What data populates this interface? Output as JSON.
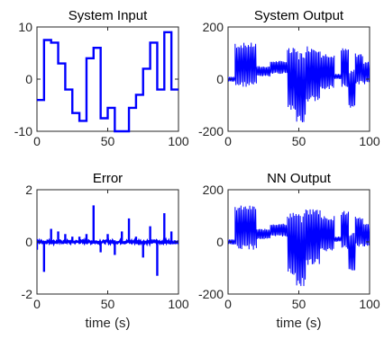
{
  "figure": {
    "line_color": "#0000ff",
    "axis_color": "#262626"
  },
  "chart_data": [
    {
      "type": "line",
      "title": "System Input",
      "xlabel": "",
      "xlim": [
        0,
        100
      ],
      "ylim": [
        -10,
        10
      ],
      "xticks": [
        0,
        50,
        100
      ],
      "yticks": [
        -10,
        0,
        10
      ],
      "series": [
        {
          "style": "step",
          "x": [
            0,
            5,
            10,
            15,
            20,
            25,
            30,
            35,
            40,
            45,
            50,
            55,
            60,
            65,
            70,
            75,
            80,
            85,
            90,
            95,
            100
          ],
          "y": [
            -4,
            7.5,
            7,
            3,
            -2,
            -6.5,
            -8,
            4,
            6,
            -7.5,
            -5.5,
            -10,
            -10,
            -5.5,
            -3,
            2,
            7,
            -2,
            9,
            -2,
            -2
          ]
        }
      ]
    },
    {
      "type": "line",
      "title": "System Output",
      "xlabel": "",
      "xlim": [
        0,
        100
      ],
      "ylim": [
        -200,
        200
      ],
      "xticks": [
        0,
        50,
        100
      ],
      "yticks": [
        -200,
        0,
        200
      ],
      "series": [
        {
          "style": "oscillation",
          "segments": [
            {
              "x": [
                0,
                5
              ],
              "low": -10,
              "high": 10
            },
            {
              "x": [
                5,
                20
              ],
              "low": -30,
              "high": 140
            },
            {
              "x": [
                20,
                30
              ],
              "low": 10,
              "high": 50
            },
            {
              "x": [
                30,
                42
              ],
              "low": 20,
              "high": 70
            },
            {
              "x": [
                42,
                48
              ],
              "low": -130,
              "high": 120
            },
            {
              "x": [
                48,
                55
              ],
              "low": -170,
              "high": 110
            },
            {
              "x": [
                55,
                65
              ],
              "low": -90,
              "high": 130
            },
            {
              "x": [
                65,
                75
              ],
              "low": -40,
              "high": 100
            },
            {
              "x": [
                75,
                80
              ],
              "low": 0,
              "high": 20
            },
            {
              "x": [
                80,
                85
              ],
              "low": -30,
              "high": 120
            },
            {
              "x": [
                85,
                90
              ],
              "low": -110,
              "high": 40
            },
            {
              "x": [
                90,
                95
              ],
              "low": -20,
              "high": 100
            },
            {
              "x": [
                95,
                100
              ],
              "low": -20,
              "high": 70
            }
          ]
        }
      ]
    },
    {
      "type": "line",
      "title": "Error",
      "xlabel": "time (s)",
      "xlim": [
        0,
        100
      ],
      "ylim": [
        -2,
        2
      ],
      "xticks": [
        0,
        50,
        100
      ],
      "yticks": [
        -2,
        0,
        2
      ],
      "series": [
        {
          "style": "spikes",
          "baseline_noise": 0.05,
          "spike_x": [
            0,
            5,
            10,
            15,
            20,
            25,
            30,
            35,
            40,
            45,
            50,
            55,
            60,
            65,
            70,
            75,
            80,
            85,
            90,
            95
          ],
          "spike_y": [
            -0.3,
            -1.15,
            0.5,
            0.4,
            0.3,
            0.2,
            0.2,
            0.3,
            1.4,
            -0.4,
            0.3,
            -0.5,
            0.4,
            0.9,
            0.2,
            -0.6,
            0.6,
            -1.3,
            1.1,
            0.4
          ]
        }
      ]
    },
    {
      "type": "line",
      "title": "NN Output",
      "xlabel": "time (s)",
      "xlim": [
        0,
        100
      ],
      "ylim": [
        -200,
        200
      ],
      "xticks": [
        0,
        50,
        100
      ],
      "yticks": [
        -200,
        0,
        200
      ],
      "series": [
        {
          "style": "oscillation",
          "segments": [
            {
              "x": [
                0,
                5
              ],
              "low": -10,
              "high": 10
            },
            {
              "x": [
                5,
                20
              ],
              "low": -30,
              "high": 140
            },
            {
              "x": [
                20,
                30
              ],
              "low": 10,
              "high": 50
            },
            {
              "x": [
                30,
                42
              ],
              "low": 20,
              "high": 70
            },
            {
              "x": [
                42,
                48
              ],
              "low": -130,
              "high": 120
            },
            {
              "x": [
                48,
                55
              ],
              "low": -170,
              "high": 110
            },
            {
              "x": [
                55,
                65
              ],
              "low": -90,
              "high": 130
            },
            {
              "x": [
                65,
                75
              ],
              "low": -40,
              "high": 100
            },
            {
              "x": [
                75,
                80
              ],
              "low": 0,
              "high": 20
            },
            {
              "x": [
                80,
                85
              ],
              "low": -30,
              "high": 120
            },
            {
              "x": [
                85,
                90
              ],
              "low": -110,
              "high": 40
            },
            {
              "x": [
                90,
                95
              ],
              "low": -20,
              "high": 100
            },
            {
              "x": [
                95,
                100
              ],
              "low": -20,
              "high": 70
            }
          ]
        }
      ]
    }
  ]
}
